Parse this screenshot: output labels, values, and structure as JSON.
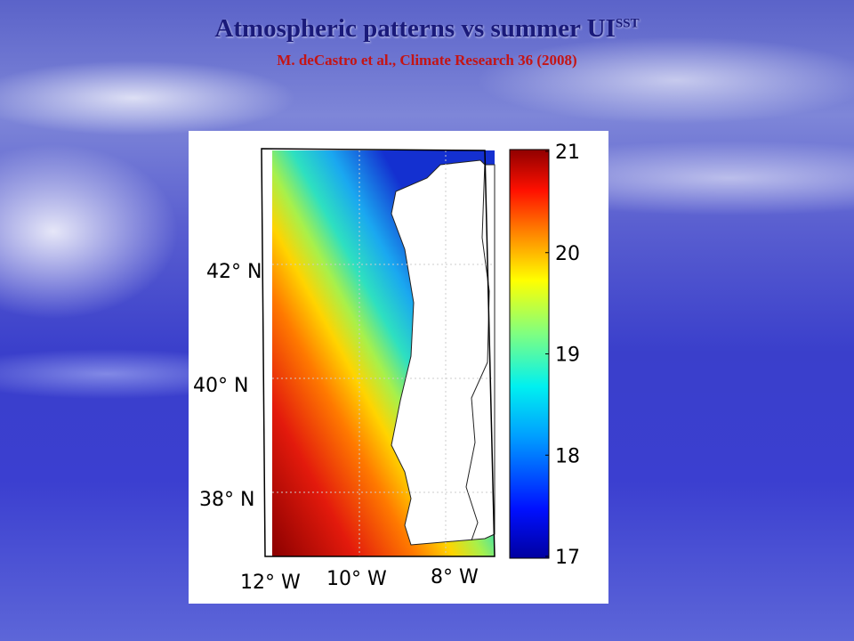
{
  "header": {
    "title": "Atmospheric patterns vs summer UI",
    "title_superscript": "SST",
    "subtitle": "M. deCastro et al., Climate Research 36 (2008)"
  },
  "figure": {
    "latitude_labels": [
      "42° N",
      "40° N",
      "38° N"
    ],
    "longitude_labels": [
      "12° W",
      "10° W",
      "8° W"
    ],
    "colorbar": {
      "ticks": [
        21,
        20,
        19,
        18,
        17
      ]
    }
  }
}
